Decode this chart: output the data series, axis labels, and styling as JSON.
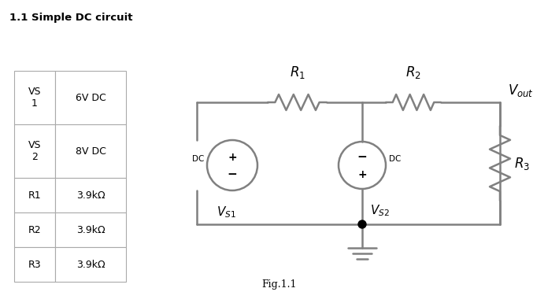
{
  "title": "1.1 Simple DC circuit",
  "fig_label": "Fig.1.1",
  "table_data": [
    [
      "VS\n1",
      "6V DC"
    ],
    [
      "VS\n2",
      "8V DC"
    ],
    [
      "R1",
      "3.9kΩ"
    ],
    [
      "R2",
      "3.9kΩ"
    ],
    [
      "R3",
      "3.9kΩ"
    ]
  ],
  "bg_color": "#ffffff",
  "line_color": "#808080",
  "text_color": "#000000",
  "line_width": 1.8
}
